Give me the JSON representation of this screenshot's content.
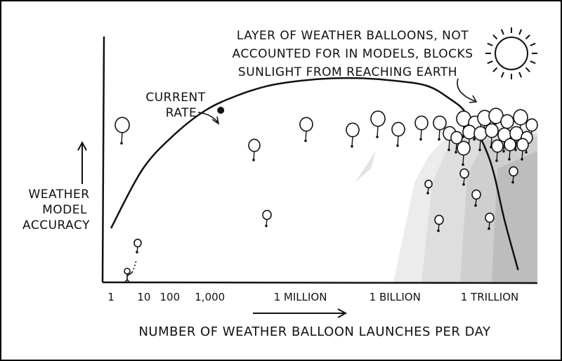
{
  "chart_data": {
    "type": "line",
    "title": "",
    "xlabel": "NUMBER OF WEATHER BALLOON LAUNCHES PER DAY",
    "ylabel_lines": [
      "WEATHER",
      "MODEL",
      "ACCURACY"
    ],
    "x_scale": "log",
    "x_tick_labels": [
      "1",
      "10",
      "100",
      "1,000",
      "1 MILLION",
      "1 BILLION",
      "1 TRILLION"
    ],
    "x_tick_values": [
      1,
      10,
      100,
      1000,
      1000000,
      1000000000,
      1000000000000
    ],
    "xlim": [
      0.5,
      20000000000000
    ],
    "ylim": [
      0,
      1
    ],
    "y_ticks": "none",
    "grid": false,
    "series": [
      {
        "x": [
          1,
          10,
          100,
          1000,
          10000,
          100000,
          1000000,
          10000000,
          100000000,
          1000000000,
          10000000000,
          50000000000,
          200000000000,
          1000000000000,
          3000000000000,
          8000000000000
        ],
        "y": [
          0.22,
          0.46,
          0.6,
          0.7,
          0.76,
          0.8,
          0.82,
          0.83,
          0.83,
          0.82,
          0.8,
          0.75,
          0.68,
          0.5,
          0.25,
          0.05
        ]
      }
    ],
    "annotations": [
      {
        "text_lines": [
          "CURRENT",
          "RATE"
        ],
        "x": 3000,
        "y": 0.7
      },
      {
        "text_lines": [
          "LAYER OF WEATHER BALLOONS, NOT",
          "ACCOUNTED FOR IN MODELS, BLOCKS",
          "SUNLIGHT FROM REACHING EARTH"
        ],
        "x": 1000000000000,
        "y": 0.85
      }
    ]
  },
  "colors": {
    "ink": "#111111",
    "shade_light": "#e6e6e6",
    "shade_mid": "#d0d0d0",
    "shade_dark": "#b8b8b8"
  },
  "decor": {
    "sun": "sun-icon",
    "balloon": "weather-balloon-icon",
    "person": "stick-figure-icon"
  }
}
